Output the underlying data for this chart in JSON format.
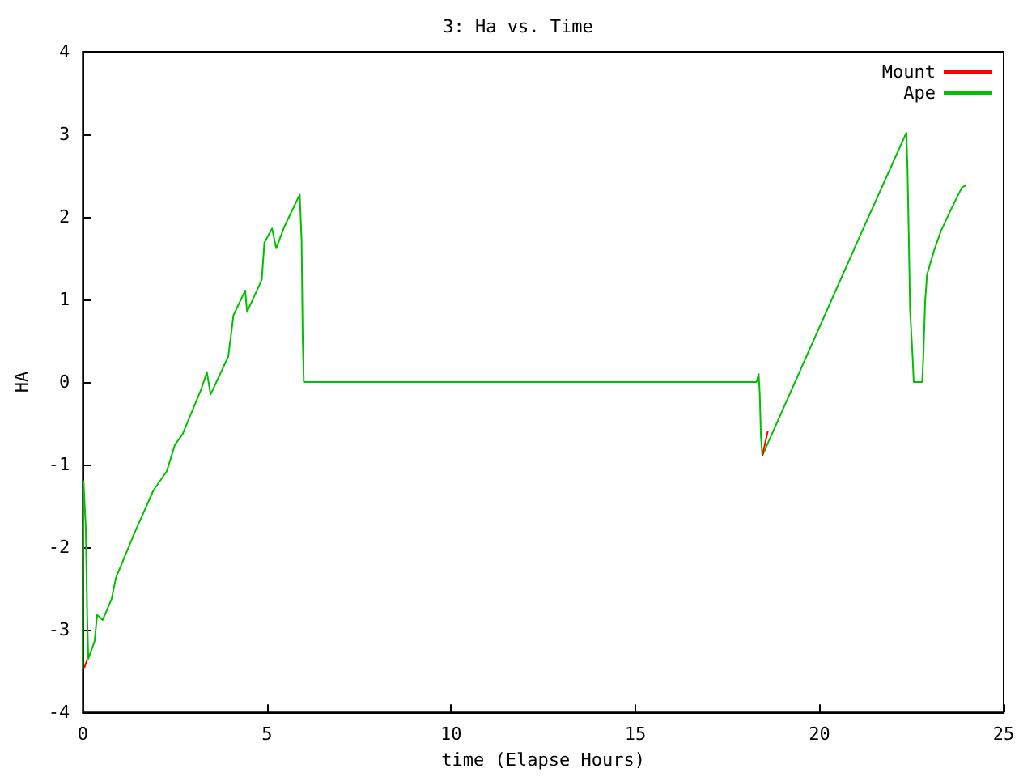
{
  "chart_data": {
    "type": "line",
    "title": "3: Ha vs. Time",
    "xlabel": "time (Elapse Hours)",
    "ylabel": "HA",
    "xlim": [
      0,
      25
    ],
    "xticks": [
      0,
      5,
      10,
      15,
      20,
      25
    ],
    "ylim": [
      -4,
      4
    ],
    "yticks": [
      -4,
      -3,
      -2,
      -1,
      0,
      1,
      2,
      3,
      4
    ],
    "grid": false,
    "legend": "top right",
    "marker": "none",
    "line_style": "solid",
    "x": [
      0,
      0.02,
      0.08,
      0.12,
      0.15,
      0.32,
      0.39,
      0.54,
      0.78,
      0.9,
      1.41,
      1.92,
      2.28,
      2.5,
      2.71,
      3.22,
      3.37,
      3.47,
      3.95,
      4.05,
      4.09,
      4.41,
      4.46,
      4.86,
      4.93,
      5.14,
      5.25,
      5.47,
      5.89,
      5.94,
      5.97,
      6.0,
      18.29,
      18.35,
      18.38,
      18.41,
      18.45,
      21.15,
      22.36,
      22.39,
      22.43,
      22.46,
      22.53,
      22.56,
      22.79,
      22.82,
      22.87,
      22.92,
      23.11,
      23.29,
      23.55,
      23.87,
      23.98
    ],
    "series": [
      {
        "name": "Mount",
        "color": "#ff0000",
        "x": [
          0.04,
          0.12,
          10,
          18.45,
          18.6
        ],
        "values": [
          -3.46,
          -3.36,
          null,
          -0.89,
          -0.59
        ]
      },
      {
        "name": "Ape",
        "color": "#00c000",
        "values": [
          -3.47,
          -1.2,
          -1.75,
          -2.85,
          -3.35,
          -3.14,
          -2.82,
          -2.88,
          -2.63,
          -2.37,
          -1.82,
          -1.31,
          -1.08,
          -0.76,
          -0.63,
          -0.08,
          0.12,
          -0.15,
          0.31,
          0.66,
          0.81,
          1.11,
          0.85,
          1.24,
          1.69,
          1.86,
          1.62,
          1.88,
          2.27,
          1.72,
          0.56,
          0,
          0,
          0.1,
          -0.15,
          -0.65,
          -0.89,
          1.82,
          3.02,
          2.59,
          1.66,
          0.88,
          0.3,
          0,
          0,
          0.3,
          0.98,
          1.3,
          1.59,
          1.82,
          2.07,
          2.36,
          2.38
        ]
      }
    ]
  }
}
